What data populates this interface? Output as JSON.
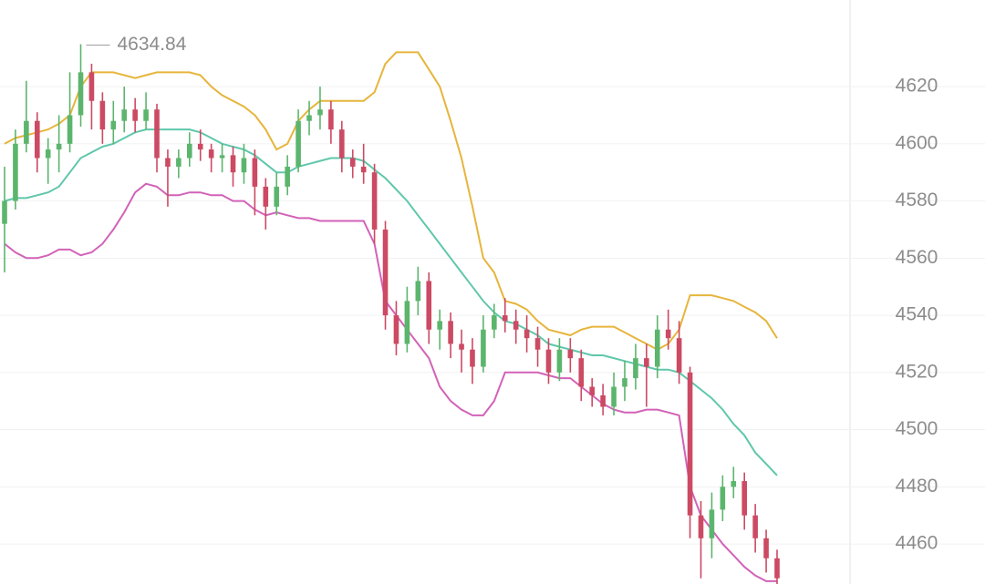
{
  "chart_data": {
    "type": "candlestick",
    "up_color": "#5cb56d",
    "down_color": "#cc4a63",
    "ylim": [
      4446,
      4650.3
    ],
    "yticks": [
      4460,
      4480,
      4500,
      4520,
      4540,
      4560,
      4580,
      4600,
      4620
    ],
    "grid": true,
    "open": [
      4572,
      4580,
      4600,
      4608,
      4595,
      4598,
      4600,
      4610,
      4625,
      4615,
      4605,
      4608,
      4612,
      4608,
      4612,
      4595,
      4592,
      4595,
      4600,
      4598,
      4595,
      4596,
      4590,
      4595,
      4585,
      4578,
      4585,
      4592,
      4608,
      4610,
      4612,
      4605,
      4595,
      4592,
      4590,
      4570,
      4540,
      4530,
      4545,
      4552,
      4535,
      4538,
      4530,
      4528,
      4522,
      4535,
      4540,
      4538,
      4535,
      4532,
      4528,
      4520,
      4528,
      4525,
      4515,
      4512,
      4508,
      4515,
      4518,
      4525,
      4522,
      4535,
      4532,
      4520,
      4470,
      4462,
      4472,
      4480,
      4482,
      4470,
      4462,
      4455
    ],
    "high": [
      4592,
      4605,
      4622,
      4611,
      4602,
      4610,
      4625,
      4634.84,
      4628,
      4618,
      4615,
      4620,
      4616,
      4618,
      4614,
      4598,
      4598,
      4604,
      4605,
      4600,
      4600,
      4599,
      4600,
      4598,
      4588,
      4590,
      4596,
      4612,
      4615,
      4620,
      4615,
      4608,
      4598,
      4600,
      4593,
      4573,
      4545,
      4550,
      4557,
      4555,
      4542,
      4541,
      4535,
      4532,
      4540,
      4544,
      4546,
      4542,
      4540,
      4536,
      4532,
      4532,
      4532,
      4528,
      4518,
      4516,
      4520,
      4524,
      4530,
      4530,
      4540,
      4542,
      4538,
      4522,
      4475,
      4478,
      4484,
      4487,
      4485,
      4474,
      4465,
      4458
    ],
    "low": [
      4555,
      4577,
      4597,
      4590,
      4586,
      4590,
      4597,
      4606,
      4605,
      4600,
      4600,
      4604,
      4604,
      4605,
      4590,
      4578,
      4588,
      4592,
      4594,
      4590,
      4590,
      4585,
      4586,
      4575,
      4570,
      4575,
      4582,
      4590,
      4603,
      4605,
      4600,
      4590,
      4588,
      4586,
      4565,
      4535,
      4526,
      4527,
      4540,
      4530,
      4528,
      4525,
      4520,
      4516,
      4520,
      4532,
      4534,
      4530,
      4527,
      4522,
      4516,
      4517,
      4520,
      4510,
      4508,
      4505,
      4505,
      4510,
      4514,
      4508,
      4518,
      4528,
      4516,
      4462,
      4448,
      4455,
      4468,
      4476,
      4465,
      4457,
      4450,
      4446
    ],
    "close": [
      4580,
      4600,
      4608,
      4595,
      4598,
      4600,
      4610,
      4625,
      4615,
      4605,
      4608,
      4612,
      4608,
      4612,
      4595,
      4592,
      4595,
      4600,
      4598,
      4595,
      4596,
      4590,
      4595,
      4585,
      4578,
      4585,
      4592,
      4608,
      4610,
      4612,
      4605,
      4595,
      4592,
      4590,
      4570,
      4540,
      4530,
      4545,
      4552,
      4535,
      4538,
      4530,
      4528,
      4522,
      4535,
      4540,
      4538,
      4535,
      4532,
      4528,
      4520,
      4528,
      4525,
      4515,
      4512,
      4508,
      4515,
      4518,
      4525,
      4522,
      4535,
      4532,
      4520,
      4470,
      4462,
      4472,
      4480,
      4482,
      4470,
      4462,
      4455,
      4448
    ],
    "bands": [
      {
        "color": "#e6b53c",
        "values": [
          4600,
          4602,
          4603,
          4604,
          4605,
          4607,
          4610,
          4620,
          4625,
          4625,
          4625,
          4624,
          4623,
          4624,
          4625,
          4625,
          4625,
          4625,
          4624,
          4620,
          4617,
          4615,
          4613,
          4610,
          4605,
          4598,
          4600,
          4608,
          4612,
          4615,
          4615,
          4615,
          4615,
          4615,
          4618,
          4628,
          4632,
          4632,
          4632,
          4626,
          4620,
          4608,
          4595,
          4578,
          4560,
          4555,
          4545,
          4544,
          4542,
          4538,
          4535,
          4534,
          4533,
          4535,
          4536,
          4536,
          4536,
          4534,
          4532,
          4530,
          4528,
          4530,
          4535,
          4547,
          4547,
          4547,
          4546,
          4545,
          4543,
          4541,
          4538,
          4532
        ]
      },
      {
        "color": "#5fc7ab",
        "values": [
          4580,
          4581,
          4581,
          4582,
          4583,
          4585,
          4590,
          4595,
          4597,
          4599,
          4600,
          4602,
          4604,
          4605,
          4605,
          4605,
          4605,
          4605,
          4604,
          4602,
          4600,
          4599,
          4598,
          4596,
          4593,
          4590,
          4590,
          4592,
          4593,
          4594,
          4595,
          4595,
          4595,
          4594,
          4591,
          4588,
          4584,
          4580,
          4575,
          4570,
          4565,
          4560,
          4555,
          4550,
          4545,
          4541,
          4538,
          4537,
          4535,
          4533,
          4530,
          4529,
          4528,
          4527,
          4526,
          4526,
          4525,
          4524,
          4523,
          4522,
          4521,
          4521,
          4520,
          4517,
          4514,
          4511,
          4507,
          4502,
          4498,
          4492,
          4488,
          4484
        ]
      },
      {
        "color": "#d262b8",
        "values": [
          4565,
          4562,
          4560,
          4560,
          4561,
          4563,
          4563,
          4561,
          4562,
          4565,
          4570,
          4576,
          4583,
          4586,
          4585,
          4582,
          4582,
          4583,
          4583,
          4582,
          4582,
          4580,
          4580,
          4577,
          4575,
          4576,
          4575,
          4574,
          4574,
          4573,
          4573,
          4573,
          4573,
          4573,
          4565,
          4545,
          4540,
          4535,
          4530,
          4525,
          4515,
          4510,
          4507,
          4505,
          4505,
          4510,
          4520,
          4520,
          4520,
          4520,
          4519,
          4518,
          4518,
          4515,
          4512,
          4509,
          4507,
          4506,
          4506,
          4507,
          4507,
          4506,
          4505,
          4480,
          4470,
          4465,
          4460,
          4456,
          4452,
          4449,
          4447,
          4447
        ]
      }
    ]
  }
}
